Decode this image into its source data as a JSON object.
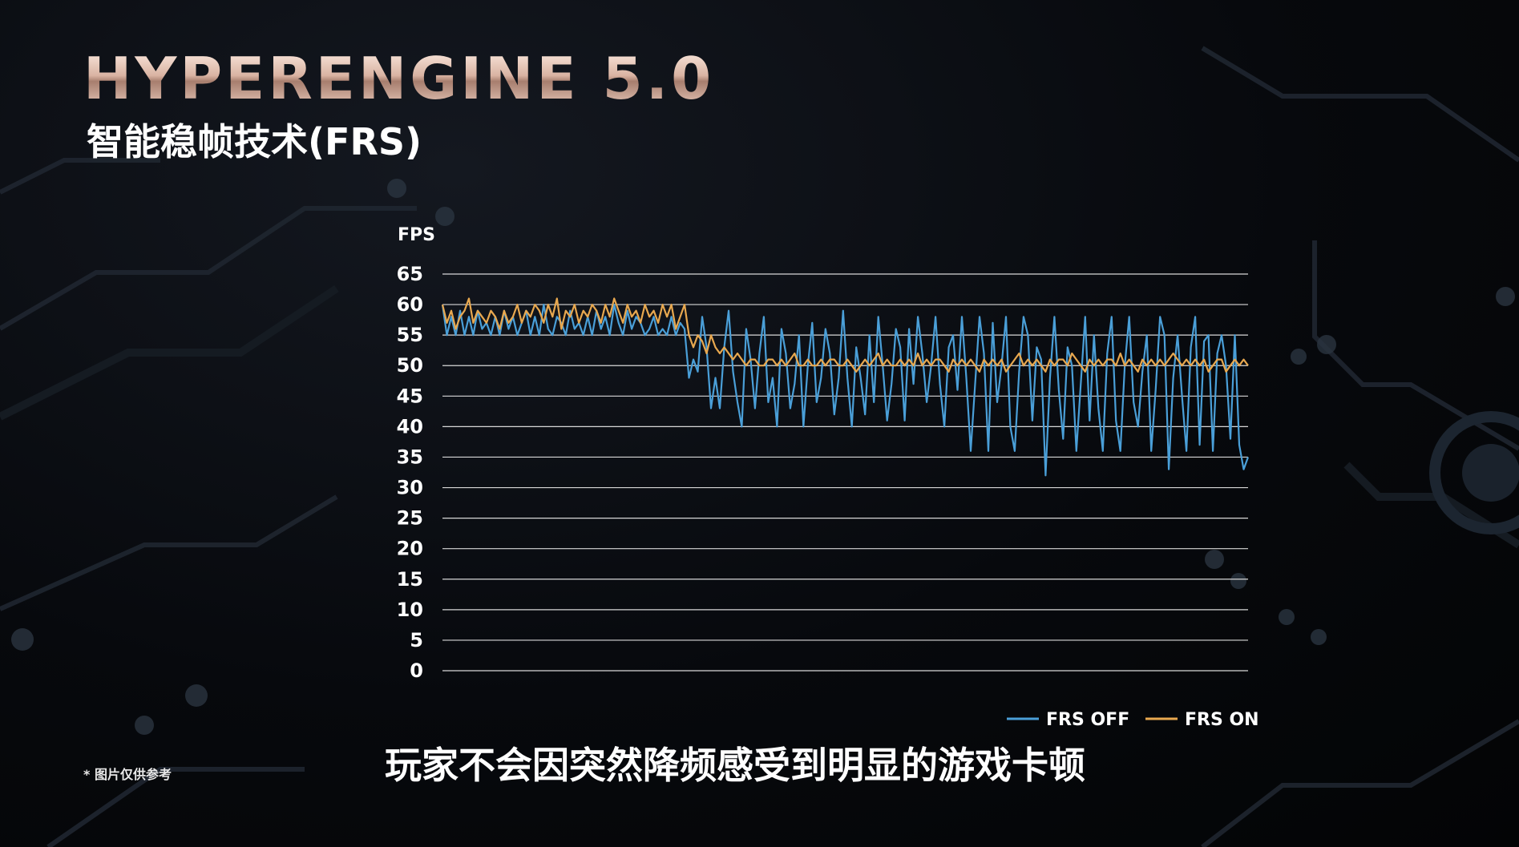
{
  "header": {
    "title": "HYPERENGINE 5.0",
    "subtitle": "智能稳帧技术(FRS)"
  },
  "footnote": "* 图片仅供参考",
  "caption": "玩家不会因突然降频感受到明显的游戏卡顿",
  "colors": {
    "frs_off": "#4a9fd8",
    "frs_on": "#e8a84f",
    "grid": "#d8d8d8"
  },
  "chart_data": {
    "type": "line",
    "title": "",
    "xlabel": "",
    "ylabel": "FPS",
    "ylim": [
      0,
      65
    ],
    "yticks": [
      65,
      60,
      55,
      50,
      45,
      40,
      35,
      30,
      25,
      20,
      15,
      10,
      5,
      0
    ],
    "grid": true,
    "legend_position": "bottom-right",
    "series": [
      {
        "name": "FRS OFF",
        "values": [
          60,
          55,
          58,
          55,
          59,
          55,
          58,
          55,
          59,
          56,
          57,
          55,
          58,
          55,
          59,
          56,
          58,
          55,
          57,
          59,
          55,
          58,
          55,
          60,
          56,
          55,
          58,
          57,
          55,
          59,
          56,
          57,
          55,
          58,
          55,
          59,
          56,
          58,
          55,
          60,
          57,
          55,
          59,
          56,
          58,
          57,
          55,
          56,
          58,
          55,
          56,
          55,
          58,
          55,
          57,
          56,
          48,
          51,
          49,
          58,
          53,
          43,
          48,
          43,
          53,
          59,
          49,
          44,
          40,
          56,
          51,
          43,
          52,
          58,
          44,
          48,
          40,
          56,
          52,
          43,
          47,
          55,
          40,
          50,
          57,
          44,
          48,
          56,
          52,
          42,
          48,
          59,
          48,
          40,
          53,
          48,
          42,
          55,
          44,
          58,
          50,
          41,
          47,
          56,
          53,
          41,
          56,
          47,
          58,
          52,
          44,
          50,
          58,
          47,
          40,
          53,
          55,
          46,
          58,
          48,
          36,
          47,
          58,
          52,
          36,
          57,
          44,
          50,
          58,
          40,
          36,
          49,
          58,
          55,
          41,
          53,
          51,
          32,
          48,
          58,
          46,
          38,
          53,
          50,
          36,
          47,
          58,
          41,
          55,
          43,
          36,
          52,
          58,
          41,
          36,
          50,
          58,
          44,
          40,
          49,
          55,
          36,
          46,
          58,
          55,
          33,
          48,
          55,
          45,
          36,
          53,
          58,
          37,
          54,
          55,
          36,
          52,
          55,
          50,
          38,
          55,
          37,
          33,
          35
        ],
        "color": "#4a9fd8"
      },
      {
        "name": "FRS ON",
        "values": [
          60,
          57,
          59,
          56,
          58,
          59,
          61,
          57,
          59,
          58,
          57,
          59,
          58,
          56,
          59,
          57,
          58,
          60,
          57,
          59,
          58,
          60,
          59,
          57,
          60,
          58,
          61,
          56,
          59,
          58,
          60,
          57,
          59,
          58,
          60,
          59,
          57,
          60,
          58,
          61,
          59,
          57,
          60,
          58,
          59,
          57,
          60,
          58,
          59,
          57,
          60,
          58,
          60,
          56,
          58,
          60,
          55,
          53,
          55,
          54,
          52,
          55,
          53,
          52,
          53,
          52,
          51,
          52,
          51,
          50,
          51,
          51,
          50,
          50,
          51,
          51,
          50,
          51,
          50,
          51,
          52,
          50,
          50,
          51,
          50,
          50,
          51,
          50,
          51,
          51,
          50,
          50,
          51,
          50,
          49,
          50,
          51,
          50,
          51,
          52,
          50,
          51,
          50,
          50,
          51,
          50,
          51,
          50,
          52,
          50,
          51,
          50,
          51,
          51,
          50,
          49,
          51,
          50,
          51,
          50,
          51,
          50,
          49,
          51,
          50,
          51,
          50,
          51,
          49,
          50,
          51,
          52,
          50,
          51,
          50,
          51,
          50,
          49,
          51,
          50,
          51,
          51,
          50,
          52,
          51,
          50,
          49,
          51,
          50,
          51,
          50,
          51,
          51,
          50,
          52,
          50,
          51,
          50,
          49,
          51,
          50,
          51,
          50,
          51,
          50,
          51,
          52,
          51,
          50,
          51,
          50,
          51,
          50,
          51,
          49,
          50,
          51,
          51,
          49,
          50,
          51,
          50,
          51,
          50
        ],
        "color": "#e8a84f"
      }
    ]
  }
}
